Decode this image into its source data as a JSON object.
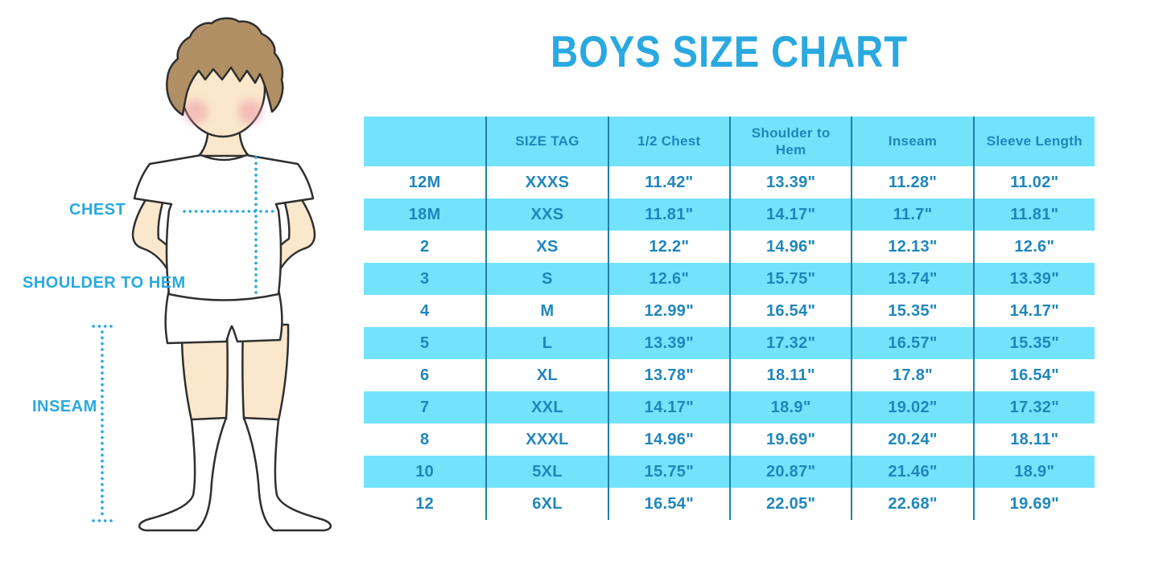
{
  "title": "BOYS SIZE CHART",
  "colors": {
    "accent_blue": "#29A9E0",
    "band_blue": "#73E3FC",
    "table_text_blue": "#1F86BC",
    "table_line_blue": "#1E7FAD",
    "outline": "#2F2F2F",
    "skin": "#FBE7CB",
    "hair": "#B18F64",
    "cheek": "#ED93A8"
  },
  "figure": {
    "labels": {
      "chest": "CHEST",
      "shoulder_to_hem": "SHOULDER TO HEM",
      "inseam": "INSEAM"
    }
  },
  "chart_data": {
    "type": "table",
    "title": "BOYS SIZE CHART",
    "columns": [
      "",
      "SIZE TAG",
      "1/2 Chest",
      "Shoulder to Hem",
      "Inseam",
      "Sleeve Length"
    ],
    "rows": [
      [
        "12M",
        "XXXS",
        "11.42\"",
        "13.39\"",
        "11.28\"",
        "11.02\""
      ],
      [
        "18M",
        "XXS",
        "11.81\"",
        "14.17\"",
        "11.7\"",
        "11.81\""
      ],
      [
        "2",
        "XS",
        "12.2\"",
        "14.96\"",
        "12.13\"",
        "12.6\""
      ],
      [
        "3",
        "S",
        "12.6\"",
        "15.75\"",
        "13.74\"",
        "13.39\""
      ],
      [
        "4",
        "M",
        "12.99\"",
        "16.54\"",
        "15.35\"",
        "14.17\""
      ],
      [
        "5",
        "L",
        "13.39\"",
        "17.32\"",
        "16.57\"",
        "15.35\""
      ],
      [
        "6",
        "XL",
        "13.78\"",
        "18.11\"",
        "17.8\"",
        "16.54\""
      ],
      [
        "7",
        "XXL",
        "14.17\"",
        "18.9\"",
        "19.02\"",
        "17.32\""
      ],
      [
        "8",
        "XXXL",
        "14.96\"",
        "19.69\"",
        "20.24\"",
        "18.11\""
      ],
      [
        "10",
        "5XL",
        "15.75\"",
        "20.87\"",
        "21.46\"",
        "18.9\""
      ],
      [
        "12",
        "6XL",
        "16.54\"",
        "22.05\"",
        "22.68\"",
        "19.69\""
      ]
    ],
    "row_striping": [
      "white",
      "blue",
      "white",
      "blue",
      "white",
      "blue",
      "white",
      "blue",
      "white",
      "blue",
      "white"
    ],
    "header_background": "blue",
    "grid": "vertical-separators-only"
  }
}
